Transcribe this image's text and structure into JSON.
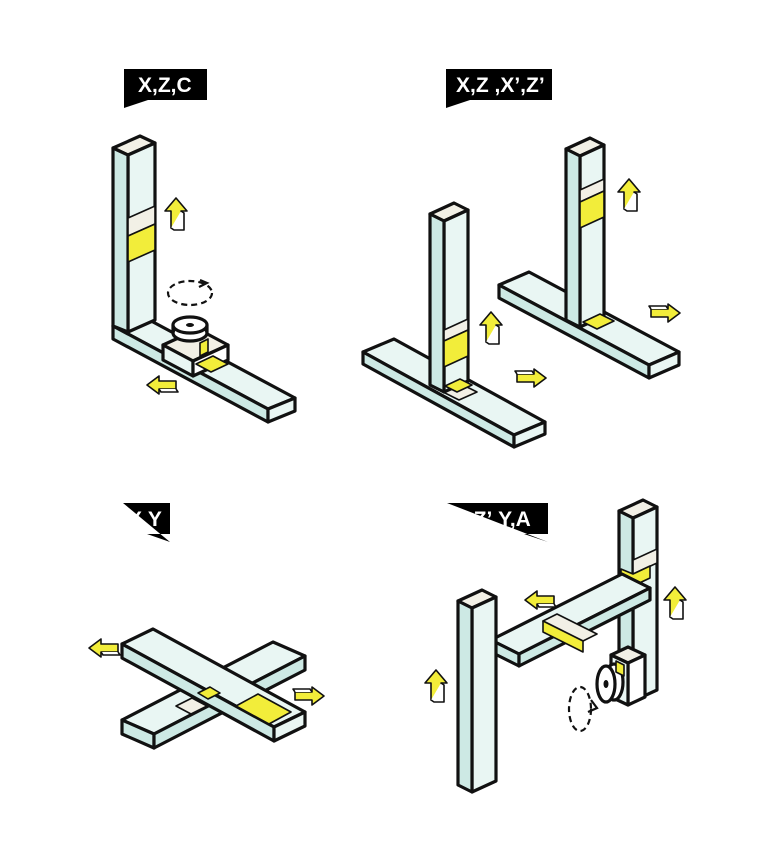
{
  "colors": {
    "beam_face": "#cde9e4",
    "beam_light": "#e9f6f3",
    "beam_top": "#f2f0e6",
    "carriage": "#f2ed3a",
    "arrow_fill": "#f2ed3a",
    "outline": "#111111",
    "label_bg": "#000000",
    "label_text": "#ffffff",
    "background": "#ffffff"
  },
  "labels": {
    "panel_1": "X,Z,C",
    "panel_2": "X,Z ,X’,Z’",
    "panel_3": "X,Y",
    "panel_4": "Z,Z’,Y,A"
  }
}
